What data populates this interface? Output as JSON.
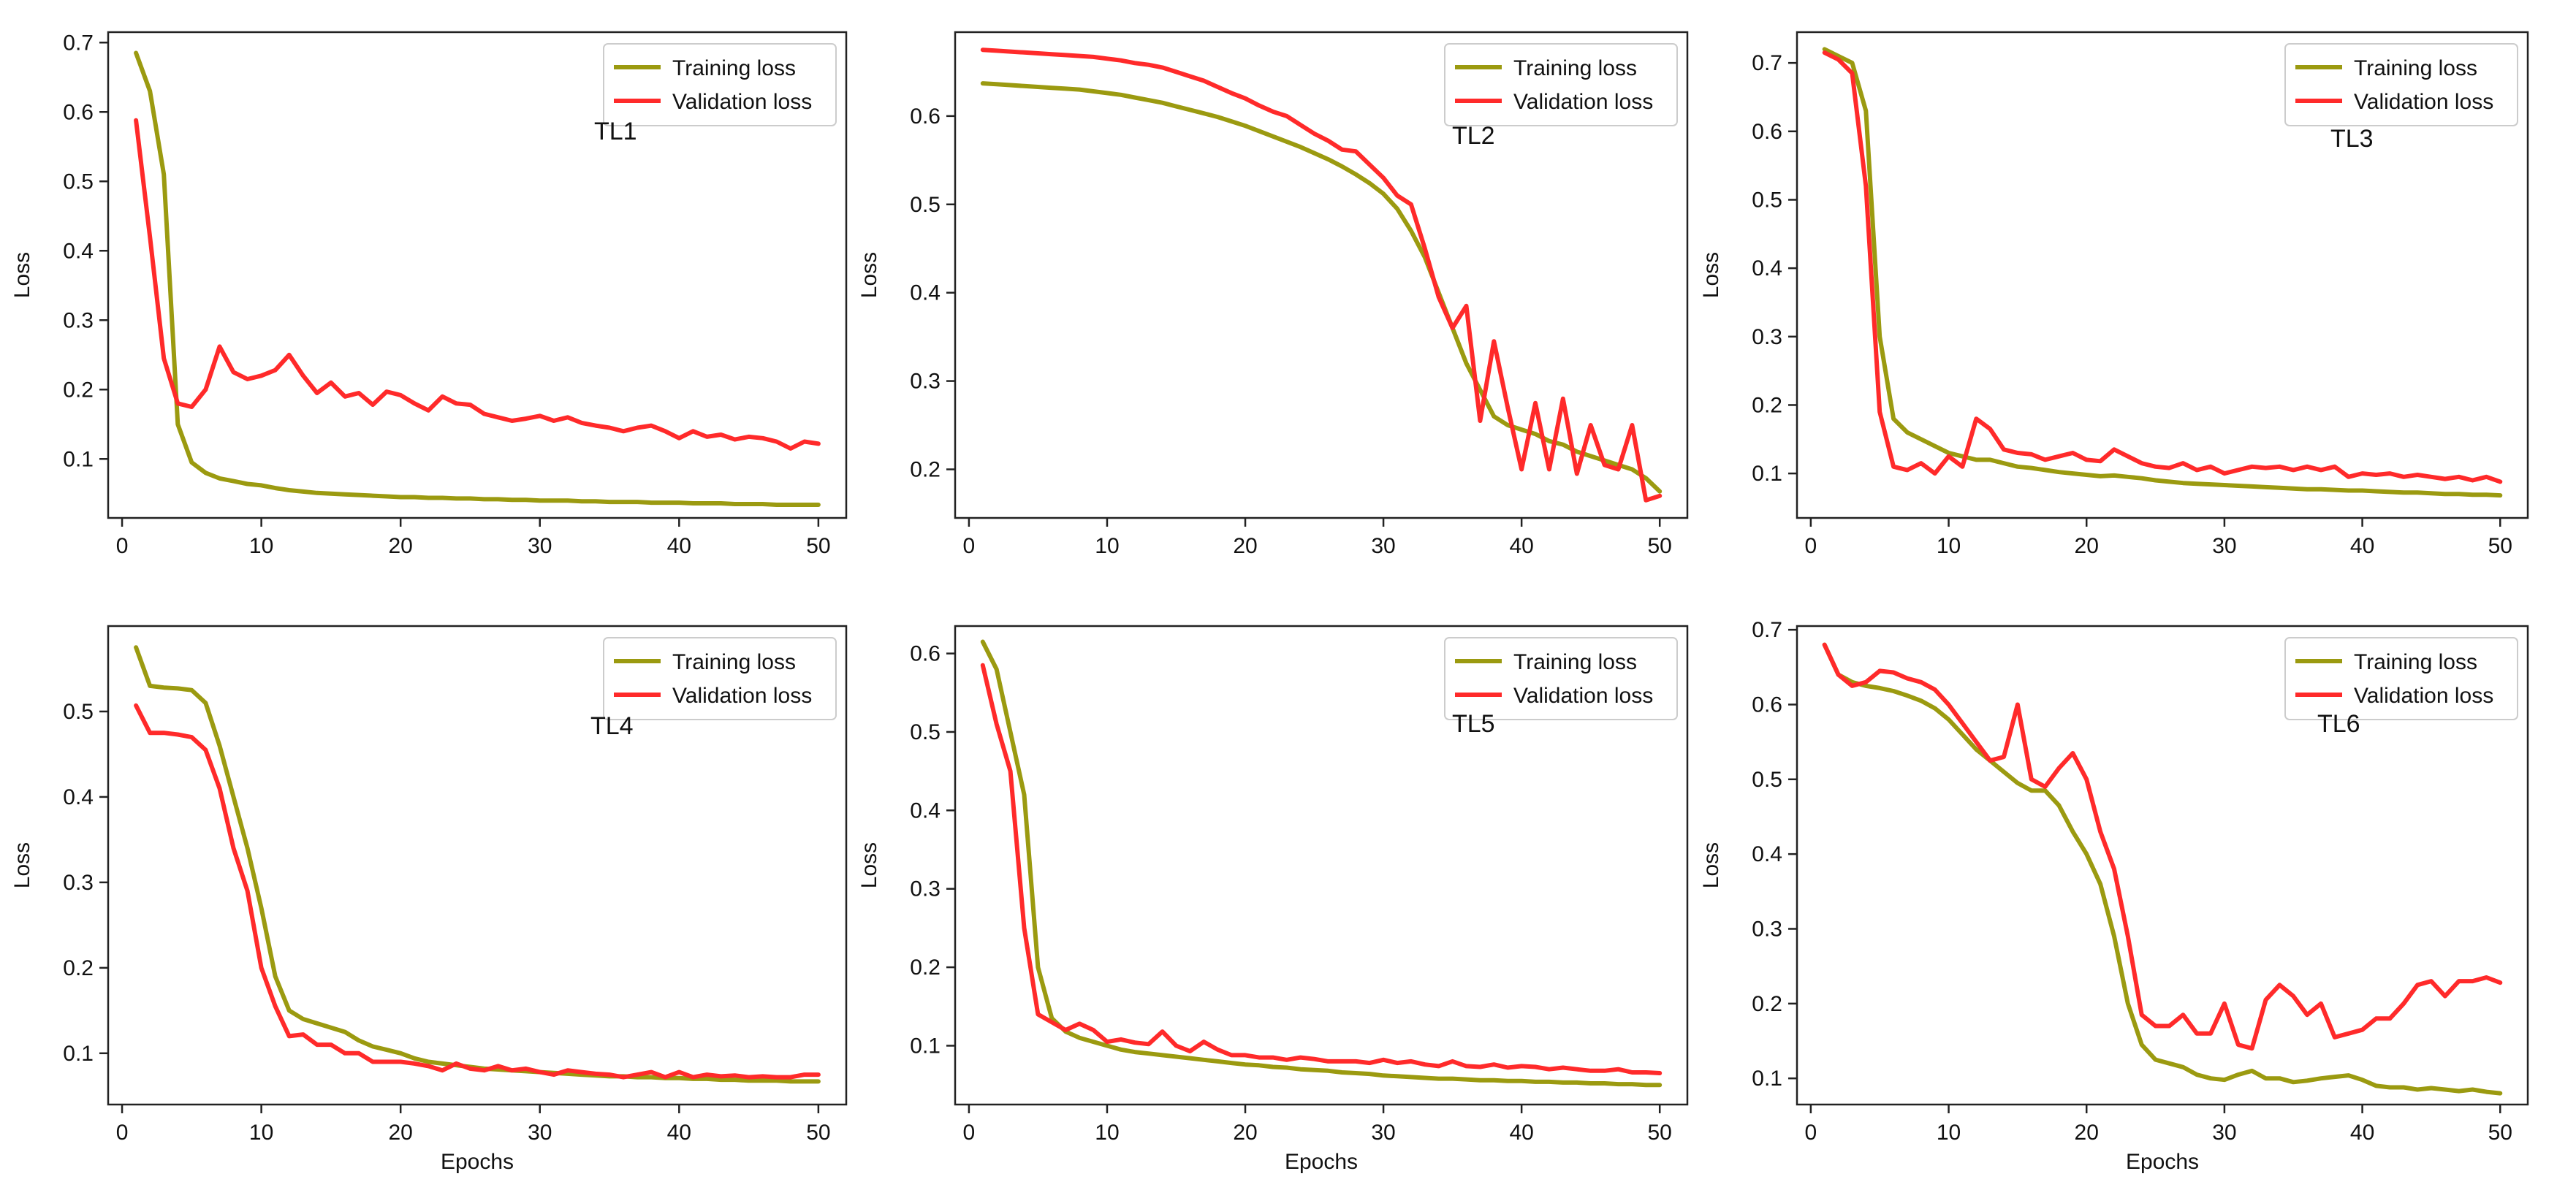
{
  "colors": {
    "training": "#9b9a10",
    "validation": "#ff2a2a",
    "axis": "#222222",
    "text": "#111111"
  },
  "chart_data": [
    {
      "type": "line",
      "name": "TL1",
      "annotation": "TL1",
      "xlabel": "",
      "ylabel": "Loss",
      "xlim": [
        -1,
        52
      ],
      "ylim": [
        0.015,
        0.715
      ],
      "xticks": [
        "0",
        "10",
        "20",
        "30",
        "40",
        "50"
      ],
      "yticks": [
        "0.1",
        "0.2",
        "0.3",
        "0.4",
        "0.5",
        "0.6",
        "0.7"
      ],
      "legend": "top-right",
      "series": [
        {
          "name": "Training loss",
          "key": "training",
          "values": [
            0.685,
            0.63,
            0.51,
            0.15,
            0.095,
            0.08,
            0.072,
            0.068,
            0.064,
            0.062,
            0.058,
            0.055,
            0.053,
            0.051,
            0.05,
            0.049,
            0.048,
            0.047,
            0.046,
            0.045,
            0.045,
            0.044,
            0.044,
            0.043,
            0.043,
            0.042,
            0.042,
            0.041,
            0.041,
            0.04,
            0.04,
            0.04,
            0.039,
            0.039,
            0.038,
            0.038,
            0.038,
            0.037,
            0.037,
            0.037,
            0.036,
            0.036,
            0.036,
            0.035,
            0.035,
            0.035,
            0.034,
            0.034,
            0.034,
            0.034
          ]
        },
        {
          "name": "Validation loss",
          "key": "validation",
          "values": [
            0.588,
            0.42,
            0.245,
            0.18,
            0.175,
            0.2,
            0.262,
            0.225,
            0.215,
            0.22,
            0.228,
            0.25,
            0.22,
            0.195,
            0.21,
            0.19,
            0.195,
            0.178,
            0.197,
            0.192,
            0.18,
            0.17,
            0.19,
            0.18,
            0.178,
            0.165,
            0.16,
            0.155,
            0.158,
            0.162,
            0.155,
            0.16,
            0.152,
            0.148,
            0.145,
            0.14,
            0.145,
            0.148,
            0.14,
            0.13,
            0.14,
            0.132,
            0.135,
            0.128,
            0.132,
            0.13,
            0.125,
            0.115,
            0.125,
            0.122
          ]
        }
      ]
    },
    {
      "type": "line",
      "name": "TL2",
      "annotation": "TL2",
      "xlabel": "",
      "ylabel": "Loss",
      "xlim": [
        -1,
        52
      ],
      "ylim": [
        0.145,
        0.695
      ],
      "xticks": [
        "0",
        "10",
        "20",
        "30",
        "40",
        "50"
      ],
      "yticks": [
        "0.2",
        "0.3",
        "0.4",
        "0.5",
        "0.6"
      ],
      "legend": "top-right",
      "series": [
        {
          "name": "Training loss",
          "key": "training",
          "values": [
            0.637,
            0.636,
            0.635,
            0.634,
            0.633,
            0.632,
            0.631,
            0.63,
            0.628,
            0.626,
            0.624,
            0.621,
            0.618,
            0.615,
            0.611,
            0.607,
            0.603,
            0.599,
            0.594,
            0.589,
            0.583,
            0.577,
            0.571,
            0.565,
            0.558,
            0.551,
            0.543,
            0.534,
            0.524,
            0.512,
            0.495,
            0.47,
            0.44,
            0.4,
            0.36,
            0.32,
            0.29,
            0.26,
            0.25,
            0.245,
            0.24,
            0.232,
            0.228,
            0.22,
            0.215,
            0.21,
            0.205,
            0.2,
            0.19,
            0.175
          ]
        },
        {
          "name": "Validation loss",
          "key": "validation",
          "values": [
            0.675,
            0.674,
            0.673,
            0.672,
            0.671,
            0.67,
            0.669,
            0.668,
            0.667,
            0.665,
            0.663,
            0.66,
            0.658,
            0.655,
            0.65,
            0.645,
            0.64,
            0.633,
            0.626,
            0.62,
            0.612,
            0.605,
            0.6,
            0.59,
            0.58,
            0.572,
            0.562,
            0.56,
            0.545,
            0.53,
            0.51,
            0.5,
            0.45,
            0.395,
            0.36,
            0.385,
            0.255,
            0.345,
            0.27,
            0.2,
            0.275,
            0.2,
            0.28,
            0.195,
            0.25,
            0.205,
            0.2,
            0.25,
            0.165,
            0.17
          ]
        }
      ]
    },
    {
      "type": "line",
      "name": "TL3",
      "annotation": "TL3",
      "xlabel": "",
      "ylabel": "Loss",
      "xlim": [
        -1,
        52
      ],
      "ylim": [
        0.035,
        0.745
      ],
      "xticks": [
        "0",
        "10",
        "20",
        "30",
        "40",
        "50"
      ],
      "yticks": [
        "0.1",
        "0.2",
        "0.3",
        "0.4",
        "0.5",
        "0.6",
        "0.7"
      ],
      "legend": "top-right",
      "series": [
        {
          "name": "Training loss",
          "key": "training",
          "values": [
            0.72,
            0.71,
            0.7,
            0.63,
            0.3,
            0.18,
            0.16,
            0.15,
            0.14,
            0.13,
            0.125,
            0.12,
            0.12,
            0.115,
            0.11,
            0.108,
            0.105,
            0.102,
            0.1,
            0.098,
            0.096,
            0.097,
            0.095,
            0.093,
            0.09,
            0.088,
            0.086,
            0.085,
            0.084,
            0.083,
            0.082,
            0.081,
            0.08,
            0.079,
            0.078,
            0.077,
            0.077,
            0.076,
            0.075,
            0.075,
            0.074,
            0.073,
            0.072,
            0.072,
            0.071,
            0.07,
            0.07,
            0.069,
            0.069,
            0.068
          ]
        },
        {
          "name": "Validation loss",
          "key": "validation",
          "values": [
            0.715,
            0.705,
            0.685,
            0.52,
            0.19,
            0.11,
            0.105,
            0.115,
            0.1,
            0.125,
            0.11,
            0.18,
            0.165,
            0.135,
            0.13,
            0.128,
            0.12,
            0.125,
            0.13,
            0.12,
            0.118,
            0.135,
            0.125,
            0.115,
            0.11,
            0.108,
            0.115,
            0.105,
            0.11,
            0.1,
            0.105,
            0.11,
            0.108,
            0.11,
            0.105,
            0.11,
            0.105,
            0.11,
            0.095,
            0.1,
            0.098,
            0.1,
            0.095,
            0.098,
            0.095,
            0.092,
            0.095,
            0.09,
            0.095,
            0.088
          ]
        }
      ]
    },
    {
      "type": "line",
      "name": "TL4",
      "annotation": "TL4",
      "xlabel": "Epochs",
      "ylabel": "Loss",
      "xlim": [
        -1,
        52
      ],
      "ylim": [
        0.04,
        0.6
      ],
      "xticks": [
        "0",
        "10",
        "20",
        "30",
        "40",
        "50"
      ],
      "yticks": [
        "0.1",
        "0.2",
        "0.3",
        "0.4",
        "0.5"
      ],
      "legend": "top-right",
      "series": [
        {
          "name": "Training loss",
          "key": "training",
          "values": [
            0.575,
            0.53,
            0.528,
            0.527,
            0.525,
            0.51,
            0.46,
            0.4,
            0.34,
            0.27,
            0.19,
            0.15,
            0.14,
            0.135,
            0.13,
            0.125,
            0.115,
            0.108,
            0.104,
            0.1,
            0.094,
            0.09,
            0.088,
            0.086,
            0.084,
            0.082,
            0.081,
            0.08,
            0.079,
            0.078,
            0.077,
            0.076,
            0.075,
            0.074,
            0.073,
            0.073,
            0.072,
            0.072,
            0.071,
            0.071,
            0.07,
            0.07,
            0.069,
            0.069,
            0.068,
            0.068,
            0.068,
            0.067,
            0.067,
            0.067
          ]
        },
        {
          "name": "Validation loss",
          "key": "validation",
          "values": [
            0.507,
            0.475,
            0.475,
            0.473,
            0.47,
            0.455,
            0.41,
            0.34,
            0.29,
            0.2,
            0.155,
            0.12,
            0.122,
            0.11,
            0.11,
            0.1,
            0.1,
            0.09,
            0.09,
            0.09,
            0.088,
            0.085,
            0.08,
            0.088,
            0.082,
            0.08,
            0.085,
            0.08,
            0.082,
            0.078,
            0.075,
            0.08,
            0.078,
            0.076,
            0.075,
            0.072,
            0.075,
            0.078,
            0.072,
            0.078,
            0.072,
            0.075,
            0.073,
            0.074,
            0.072,
            0.073,
            0.072,
            0.072,
            0.075,
            0.075
          ]
        }
      ]
    },
    {
      "type": "line",
      "name": "TL5",
      "annotation": "TL5",
      "xlabel": "Epochs",
      "ylabel": "Loss",
      "xlim": [
        -1,
        52
      ],
      "ylim": [
        0.025,
        0.635
      ],
      "xticks": [
        "0",
        "10",
        "20",
        "30",
        "40",
        "50"
      ],
      "yticks": [
        "0.1",
        "0.2",
        "0.3",
        "0.4",
        "0.5",
        "0.6"
      ],
      "legend": "top-right",
      "series": [
        {
          "name": "Training loss",
          "key": "training",
          "values": [
            0.615,
            0.58,
            0.5,
            0.42,
            0.2,
            0.135,
            0.118,
            0.11,
            0.105,
            0.1,
            0.095,
            0.092,
            0.09,
            0.088,
            0.086,
            0.084,
            0.082,
            0.08,
            0.078,
            0.076,
            0.075,
            0.073,
            0.072,
            0.07,
            0.069,
            0.068,
            0.066,
            0.065,
            0.064,
            0.062,
            0.061,
            0.06,
            0.059,
            0.058,
            0.058,
            0.057,
            0.056,
            0.056,
            0.055,
            0.055,
            0.054,
            0.054,
            0.053,
            0.053,
            0.052,
            0.052,
            0.051,
            0.051,
            0.05,
            0.05
          ]
        },
        {
          "name": "Validation loss",
          "key": "validation",
          "values": [
            0.585,
            0.51,
            0.45,
            0.25,
            0.14,
            0.13,
            0.12,
            0.128,
            0.12,
            0.105,
            0.108,
            0.104,
            0.102,
            0.118,
            0.1,
            0.093,
            0.105,
            0.095,
            0.088,
            0.088,
            0.085,
            0.085,
            0.082,
            0.085,
            0.083,
            0.08,
            0.08,
            0.08,
            0.078,
            0.082,
            0.078,
            0.08,
            0.076,
            0.074,
            0.08,
            0.074,
            0.073,
            0.076,
            0.072,
            0.074,
            0.073,
            0.07,
            0.072,
            0.07,
            0.068,
            0.068,
            0.07,
            0.066,
            0.066,
            0.065
          ]
        }
      ]
    },
    {
      "type": "line",
      "name": "TL6",
      "annotation": "TL6",
      "xlabel": "Epochs",
      "ylabel": "Loss",
      "xlim": [
        -1,
        52
      ],
      "ylim": [
        0.065,
        0.705
      ],
      "xticks": [
        "0",
        "10",
        "20",
        "30",
        "40",
        "50"
      ],
      "yticks": [
        "0.1",
        "0.2",
        "0.3",
        "0.4",
        "0.5",
        "0.6",
        "0.7"
      ],
      "legend": "top-right",
      "series": [
        {
          "name": "Training loss",
          "key": "training",
          "values": [
            0.68,
            0.64,
            0.63,
            0.625,
            0.622,
            0.618,
            0.612,
            0.605,
            0.595,
            0.58,
            0.56,
            0.54,
            0.525,
            0.51,
            0.495,
            0.485,
            0.485,
            0.465,
            0.43,
            0.4,
            0.36,
            0.29,
            0.2,
            0.145,
            0.125,
            0.12,
            0.115,
            0.105,
            0.1,
            0.098,
            0.105,
            0.11,
            0.1,
            0.1,
            0.095,
            0.097,
            0.1,
            0.102,
            0.104,
            0.098,
            0.09,
            0.088,
            0.088,
            0.085,
            0.087,
            0.085,
            0.083,
            0.085,
            0.082,
            0.08
          ]
        },
        {
          "name": "Validation loss",
          "key": "validation",
          "values": [
            0.68,
            0.64,
            0.625,
            0.63,
            0.645,
            0.643,
            0.635,
            0.63,
            0.62,
            0.6,
            0.575,
            0.55,
            0.525,
            0.53,
            0.6,
            0.5,
            0.49,
            0.515,
            0.535,
            0.5,
            0.43,
            0.38,
            0.29,
            0.185,
            0.17,
            0.17,
            0.185,
            0.16,
            0.16,
            0.2,
            0.145,
            0.14,
            0.205,
            0.225,
            0.21,
            0.185,
            0.2,
            0.155,
            0.16,
            0.165,
            0.18,
            0.18,
            0.2,
            0.225,
            0.23,
            0.21,
            0.23,
            0.23,
            0.235,
            0.228
          ]
        }
      ]
    }
  ]
}
